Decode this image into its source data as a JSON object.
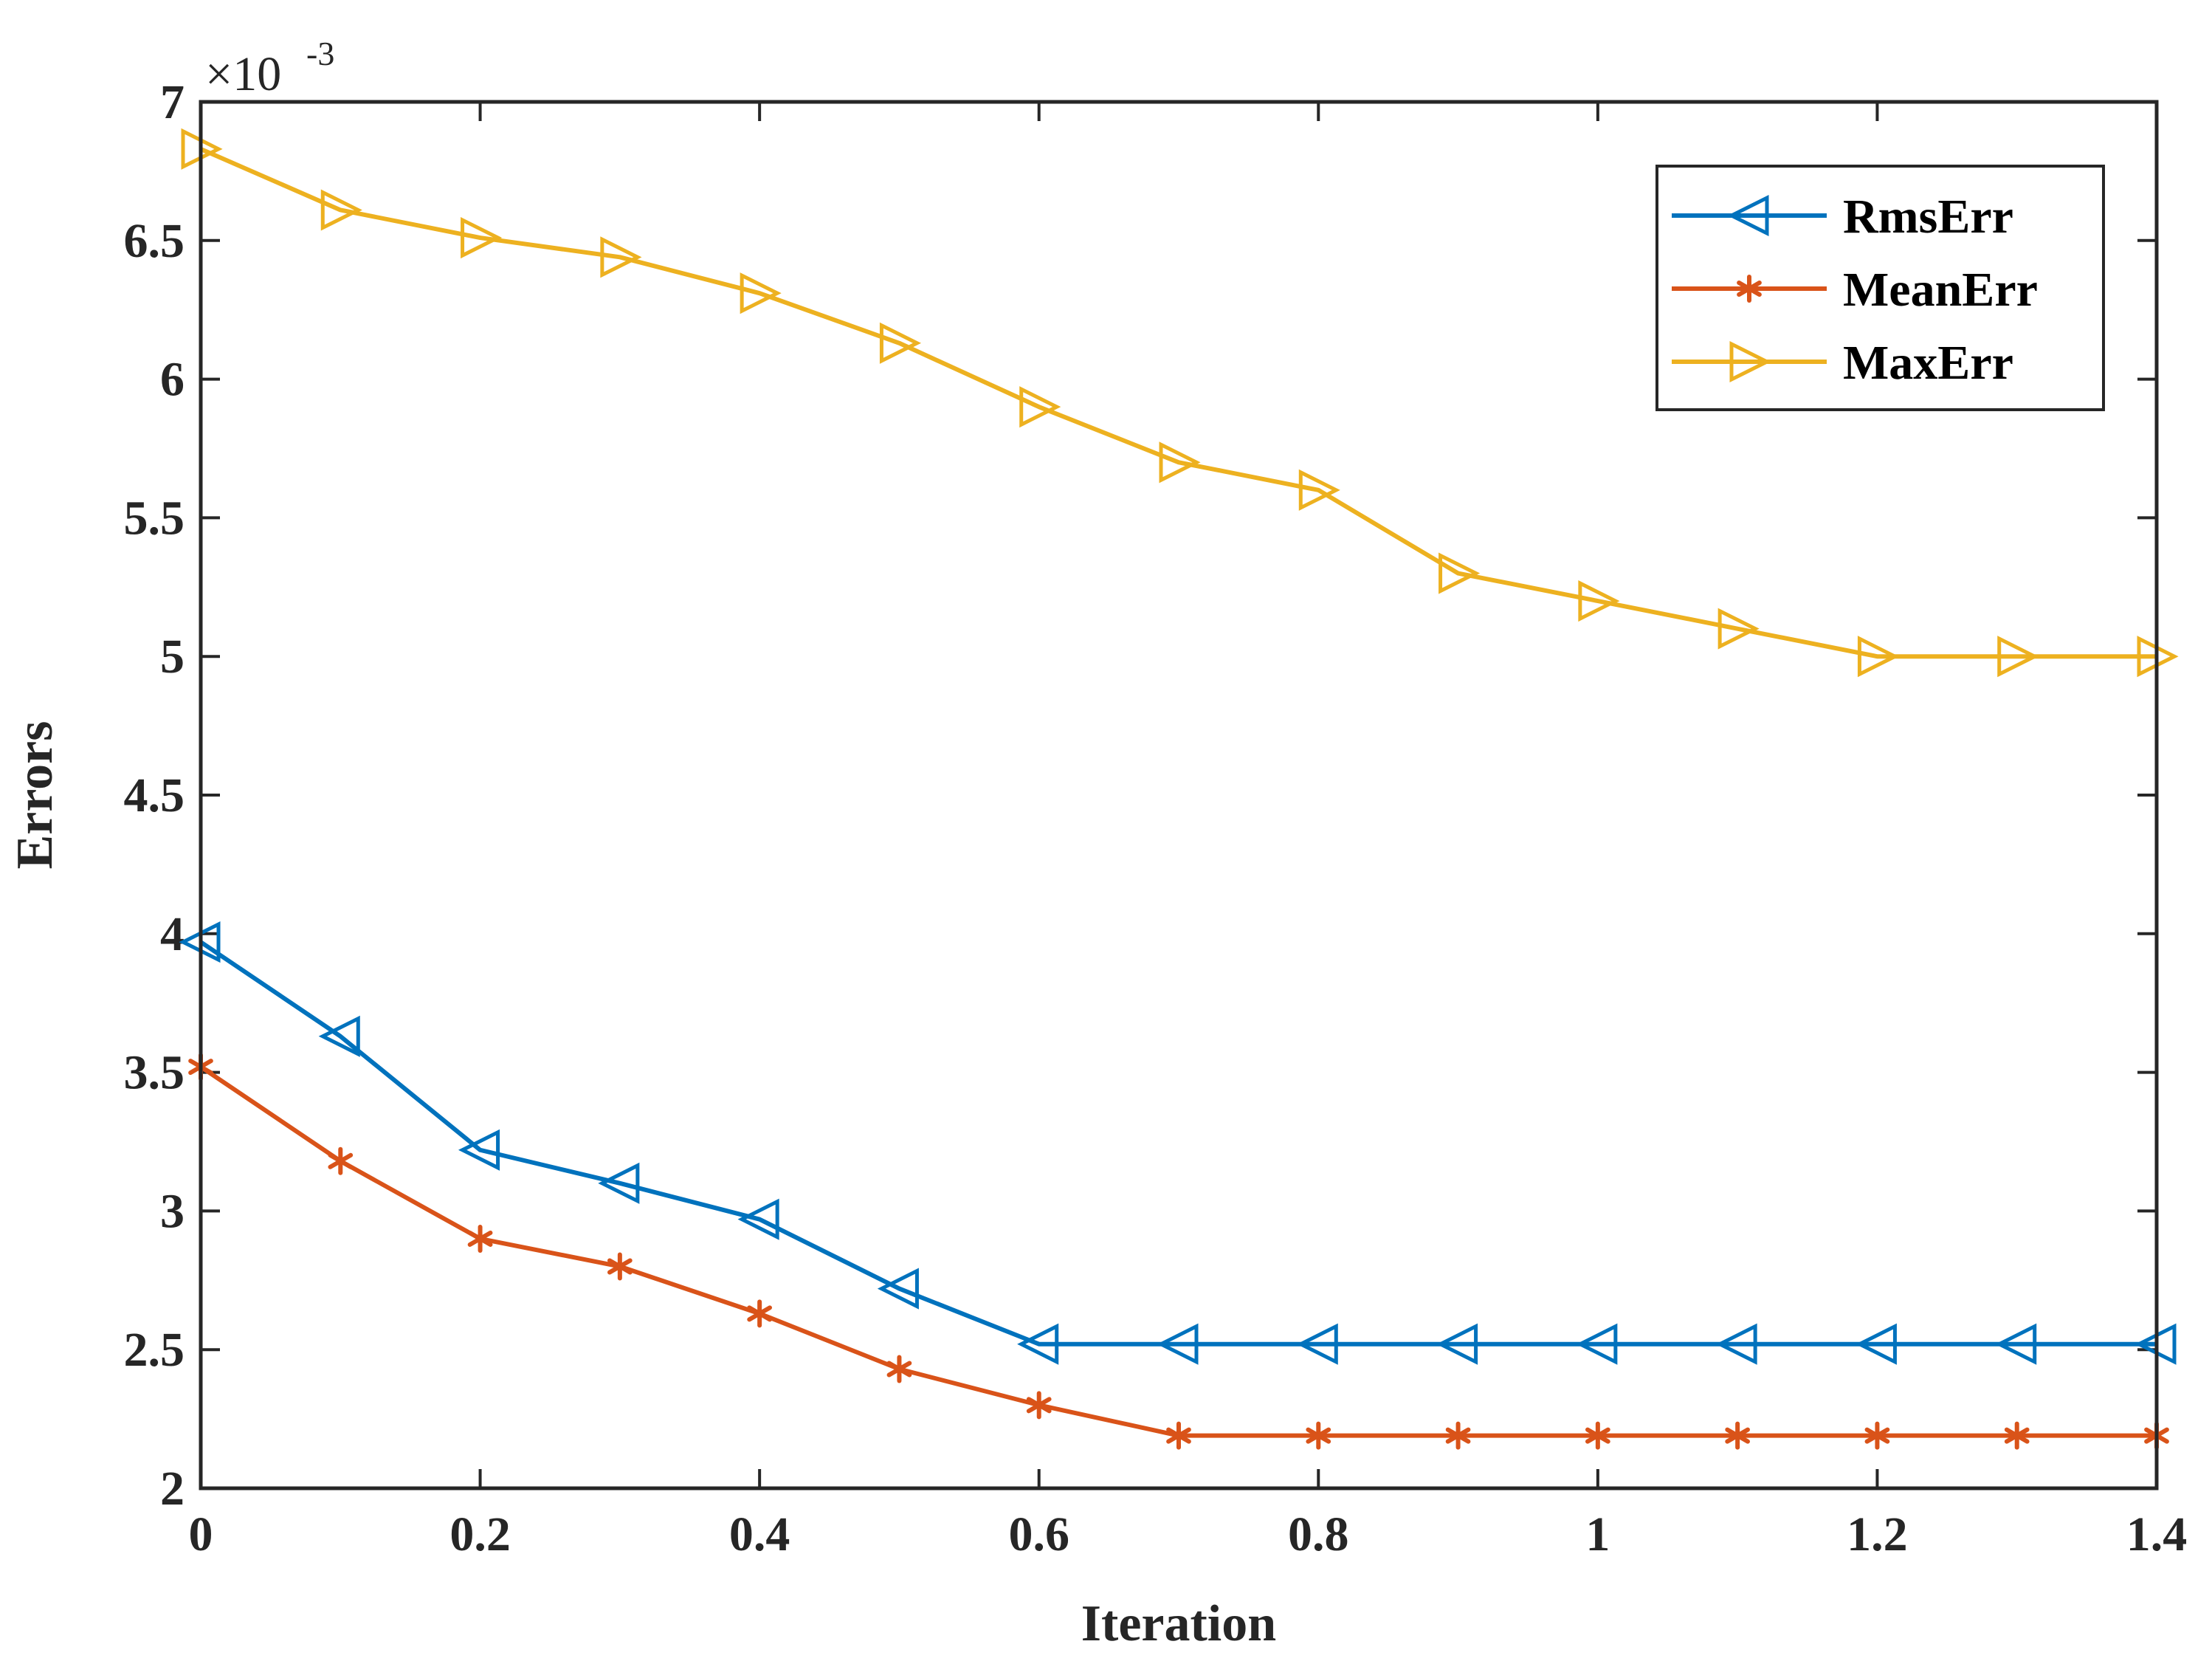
{
  "chart_data": {
    "type": "line",
    "xlabel": "Iteration",
    "ylabel": "Errors",
    "exponent_base": "×10",
    "exponent_power": "-3",
    "xlim": [
      0,
      1.4
    ],
    "ylim": [
      2,
      7
    ],
    "xticks": [
      0,
      0.2,
      0.4,
      0.6,
      0.8,
      1,
      1.2,
      1.4
    ],
    "xtick_labels": [
      "0",
      "0.2",
      "0.4",
      "0.6",
      "0.8",
      "1",
      "1.2",
      "1.4"
    ],
    "yticks": [
      2,
      2.5,
      3,
      3.5,
      4,
      4.5,
      5,
      5.5,
      6,
      6.5,
      7
    ],
    "ytick_labels": [
      "2",
      "2.5",
      "3",
      "3.5",
      "4",
      "4.5",
      "5",
      "5.5",
      "6",
      "6.5",
      "7"
    ],
    "legend_position": "top-right",
    "x": [
      0,
      0.1,
      0.2,
      0.3,
      0.4,
      0.5,
      0.6,
      0.7,
      0.8,
      0.9,
      1.0,
      1.1,
      1.2,
      1.3,
      1.4
    ],
    "series": [
      {
        "name": "RmsErr",
        "color": "#0072BD",
        "marker": "triangle-left",
        "values": [
          3.97,
          3.63,
          3.22,
          3.1,
          2.97,
          2.72,
          2.52,
          2.52,
          2.52,
          2.52,
          2.52,
          2.52,
          2.52,
          2.52,
          2.52
        ]
      },
      {
        "name": "MeanErr",
        "color": "#D95319",
        "marker": "asterisk",
        "values": [
          3.52,
          3.18,
          2.9,
          2.8,
          2.63,
          2.43,
          2.3,
          2.19,
          2.19,
          2.19,
          2.19,
          2.19,
          2.19,
          2.19,
          2.19
        ]
      },
      {
        "name": "MaxErr",
        "color": "#EDB120",
        "marker": "triangle-right",
        "values": [
          6.83,
          6.61,
          6.51,
          6.44,
          6.31,
          6.13,
          5.9,
          5.7,
          5.6,
          5.3,
          5.2,
          5.1,
          5.0,
          5.0,
          5.0
        ]
      }
    ]
  }
}
